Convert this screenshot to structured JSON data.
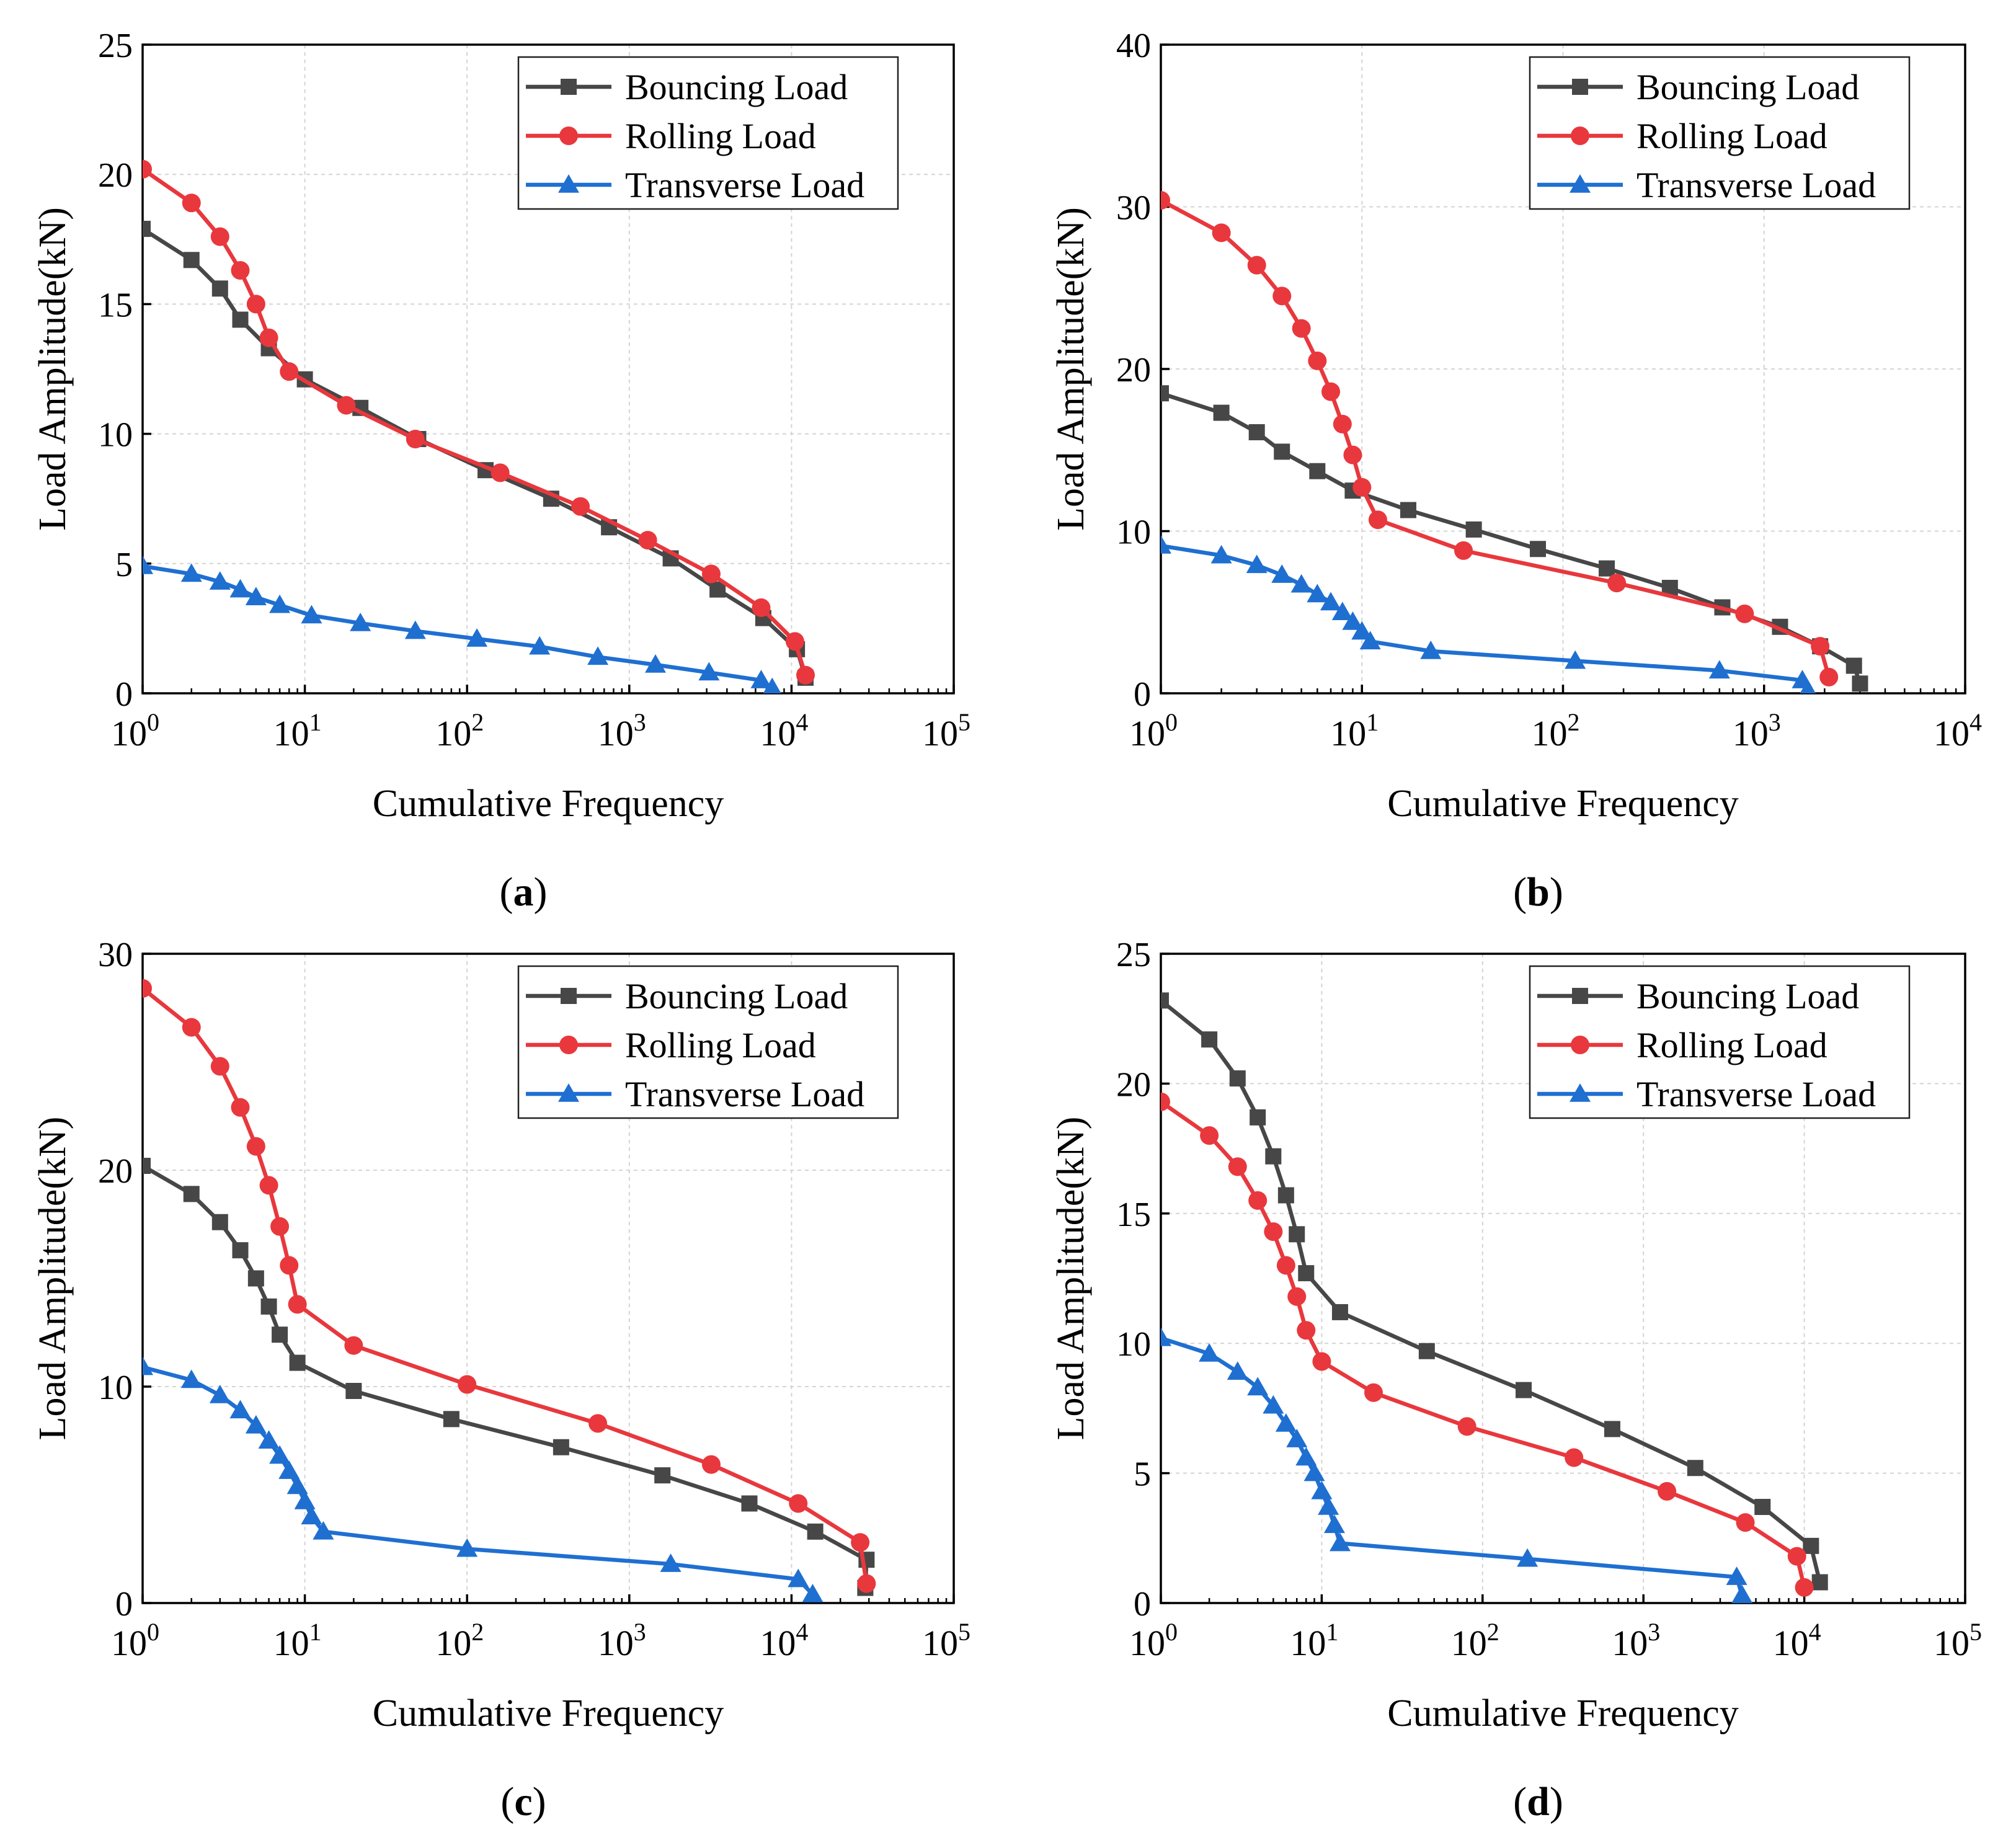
{
  "chart_data": [
    {
      "type": "line",
      "panel_label": "a",
      "xlabel": "Cumulative Frequency",
      "ylabel": "Load Amplitude(kN)",
      "xscale": "log",
      "xlim_exp": [
        0,
        5
      ],
      "ylim": [
        0,
        25
      ],
      "ytick_values": [
        0,
        5,
        10,
        15,
        20,
        25
      ],
      "ytick_labels": [
        "0",
        "5",
        "10",
        "15",
        "20",
        "25"
      ],
      "xtick_exponents": [
        "0",
        "1",
        "2",
        "3",
        "4",
        "5"
      ],
      "grid": true,
      "legend_position": "top-right",
      "series": [
        {
          "name": "Bouncing Load",
          "color": "#474747",
          "marker": "square",
          "x": [
            1,
            2,
            3,
            4,
            6,
            10,
            22,
            50,
            130,
            330,
            750,
            1800,
            3500,
            6700,
            10800,
            12200
          ],
          "y": [
            17.9,
            16.7,
            15.6,
            14.4,
            13.3,
            12.1,
            11.0,
            9.8,
            8.6,
            7.5,
            6.4,
            5.2,
            4.0,
            2.9,
            1.7,
            0.6
          ]
        },
        {
          "name": "Rolling Load",
          "color": "#e8383d",
          "marker": "circle",
          "x": [
            1,
            2,
            3,
            4,
            5,
            6,
            8,
            18,
            48,
            160,
            500,
            1300,
            3200,
            6500,
            10500,
            12200
          ],
          "y": [
            20.2,
            18.9,
            17.6,
            16.3,
            15.0,
            13.7,
            12.4,
            11.1,
            9.8,
            8.5,
            7.2,
            5.9,
            4.6,
            3.3,
            2.0,
            0.7
          ]
        },
        {
          "name": "Transverse Load",
          "color": "#1f6fd1",
          "marker": "triangle",
          "x": [
            1,
            2,
            3,
            4,
            5,
            7,
            11,
            22,
            48,
            115,
            280,
            640,
            1450,
            3100,
            6500,
            7600
          ],
          "y": [
            4.9,
            4.6,
            4.3,
            4.0,
            3.7,
            3.4,
            3.0,
            2.7,
            2.4,
            2.1,
            1.8,
            1.4,
            1.1,
            0.8,
            0.5,
            0.2
          ]
        }
      ]
    },
    {
      "type": "line",
      "panel_label": "b",
      "xlabel": "Cumulative Frequency",
      "ylabel": "Load Amplitude(kN)",
      "xscale": "log",
      "xlim_exp": [
        0,
        4
      ],
      "ylim": [
        0,
        40
      ],
      "ytick_values": [
        0,
        10,
        20,
        30,
        40
      ],
      "ytick_labels": [
        "0",
        "10",
        "20",
        "30",
        "40"
      ],
      "xtick_exponents": [
        "0",
        "1",
        "2",
        "3",
        "4"
      ],
      "grid": true,
      "legend_position": "top-right",
      "series": [
        {
          "name": "Bouncing Load",
          "color": "#474747",
          "marker": "square",
          "x": [
            1,
            2,
            3,
            4,
            6,
            9,
            17,
            36,
            75,
            165,
            340,
            620,
            1200,
            1900,
            2800,
            3000
          ],
          "y": [
            18.5,
            17.3,
            16.1,
            14.9,
            13.7,
            12.5,
            11.3,
            10.1,
            8.9,
            7.7,
            6.5,
            5.3,
            4.1,
            2.9,
            1.7,
            0.6
          ]
        },
        {
          "name": "Rolling Load",
          "color": "#e8383d",
          "marker": "circle",
          "x": [
            1,
            2,
            3,
            4,
            5,
            6,
            7,
            8,
            9,
            10,
            12,
            32,
            185,
            800,
            1900,
            2100
          ],
          "y": [
            30.4,
            28.4,
            26.4,
            24.5,
            22.5,
            20.5,
            18.6,
            16.6,
            14.7,
            12.7,
            10.7,
            8.8,
            6.8,
            4.9,
            2.9,
            1.0
          ]
        },
        {
          "name": "Transverse Load",
          "color": "#1f6fd1",
          "marker": "triangle",
          "x": [
            1,
            2,
            3,
            4,
            5,
            6,
            7,
            8,
            9,
            10,
            11,
            22,
            115,
            600,
            1550,
            1650
          ],
          "y": [
            9.1,
            8.5,
            7.9,
            7.3,
            6.7,
            6.1,
            5.6,
            5.0,
            4.4,
            3.8,
            3.2,
            2.6,
            2.0,
            1.4,
            0.8,
            0.2
          ]
        }
      ]
    },
    {
      "type": "line",
      "panel_label": "c",
      "xlabel": "Cumulative Frequency",
      "ylabel": "Load Amplitude(kN)",
      "xscale": "log",
      "xlim_exp": [
        0,
        5
      ],
      "ylim": [
        0,
        30
      ],
      "ytick_values": [
        0,
        10,
        20,
        30
      ],
      "ytick_labels": [
        "0",
        "10",
        "20",
        "30"
      ],
      "xtick_exponents": [
        "0",
        "1",
        "2",
        "3",
        "4",
        "5"
      ],
      "grid": true,
      "legend_position": "top-right",
      "series": [
        {
          "name": "Bouncing Load",
          "color": "#474747",
          "marker": "square",
          "x": [
            1,
            2,
            3,
            4,
            5,
            6,
            7,
            9,
            20,
            80,
            380,
            1600,
            5500,
            14000,
            29000,
            28500
          ],
          "y": [
            20.2,
            18.9,
            17.6,
            16.3,
            15.0,
            13.7,
            12.4,
            11.1,
            9.8,
            8.5,
            7.2,
            5.9,
            4.6,
            3.3,
            2.0,
            0.7
          ]
        },
        {
          "name": "Rolling Load",
          "color": "#e8383d",
          "marker": "circle",
          "x": [
            1,
            2,
            3,
            4,
            5,
            6,
            7,
            8,
            9,
            20,
            100,
            640,
            3200,
            11000,
            26500,
            29000
          ],
          "y": [
            28.4,
            26.6,
            24.8,
            22.9,
            21.1,
            19.3,
            17.4,
            15.6,
            13.8,
            11.9,
            10.1,
            8.3,
            6.4,
            4.6,
            2.8,
            0.9
          ]
        },
        {
          "name": "Transverse Load",
          "color": "#1f6fd1",
          "marker": "triangle",
          "x": [
            1,
            2,
            3,
            4,
            5,
            6,
            7,
            8,
            9,
            10,
            11,
            13,
            100,
            1800,
            11000,
            13500
          ],
          "y": [
            10.9,
            10.3,
            9.6,
            8.9,
            8.2,
            7.5,
            6.8,
            6.1,
            5.4,
            4.7,
            4.0,
            3.3,
            2.5,
            1.8,
            1.1,
            0.4
          ]
        }
      ]
    },
    {
      "type": "line",
      "panel_label": "d",
      "xlabel": "Cumulative Frequency",
      "ylabel": "Load Amplitude(kN)",
      "xscale": "log",
      "xlim_exp": [
        0,
        5
      ],
      "ylim": [
        0,
        25
      ],
      "ytick_values": [
        0,
        5,
        10,
        15,
        20,
        25
      ],
      "ytick_labels": [
        "0",
        "5",
        "10",
        "15",
        "20",
        "25"
      ],
      "xtick_exponents": [
        "0",
        "1",
        "2",
        "3",
        "4",
        "5"
      ],
      "grid": true,
      "legend_position": "top-right",
      "series": [
        {
          "name": "Bouncing Load",
          "color": "#474747",
          "marker": "square",
          "x": [
            1,
            2,
            3,
            4,
            5,
            6,
            7,
            8,
            13,
            45,
            180,
            640,
            2100,
            5500,
            11000,
            12500
          ],
          "y": [
            23.2,
            21.7,
            20.2,
            18.7,
            17.2,
            15.7,
            14.2,
            12.7,
            11.2,
            9.7,
            8.2,
            6.7,
            5.2,
            3.7,
            2.2,
            0.8
          ]
        },
        {
          "name": "Rolling Load",
          "color": "#e8383d",
          "marker": "circle",
          "x": [
            1,
            2,
            3,
            4,
            5,
            6,
            7,
            8,
            10,
            21,
            80,
            370,
            1400,
            4300,
            9000,
            10000
          ],
          "y": [
            19.3,
            18.0,
            16.8,
            15.5,
            14.3,
            13.0,
            11.8,
            10.5,
            9.3,
            8.1,
            6.8,
            5.6,
            4.3,
            3.1,
            1.8,
            0.6
          ]
        },
        {
          "name": "Transverse Load",
          "color": "#1f6fd1",
          "marker": "triangle",
          "x": [
            1,
            2,
            3,
            4,
            5,
            6,
            7,
            8,
            9,
            10,
            11,
            12,
            13,
            190,
            3800,
            4100
          ],
          "y": [
            10.2,
            9.6,
            8.9,
            8.3,
            7.6,
            6.9,
            6.3,
            5.6,
            5.0,
            4.3,
            3.7,
            3.0,
            2.3,
            1.7,
            1.0,
            0.3
          ]
        }
      ]
    }
  ]
}
